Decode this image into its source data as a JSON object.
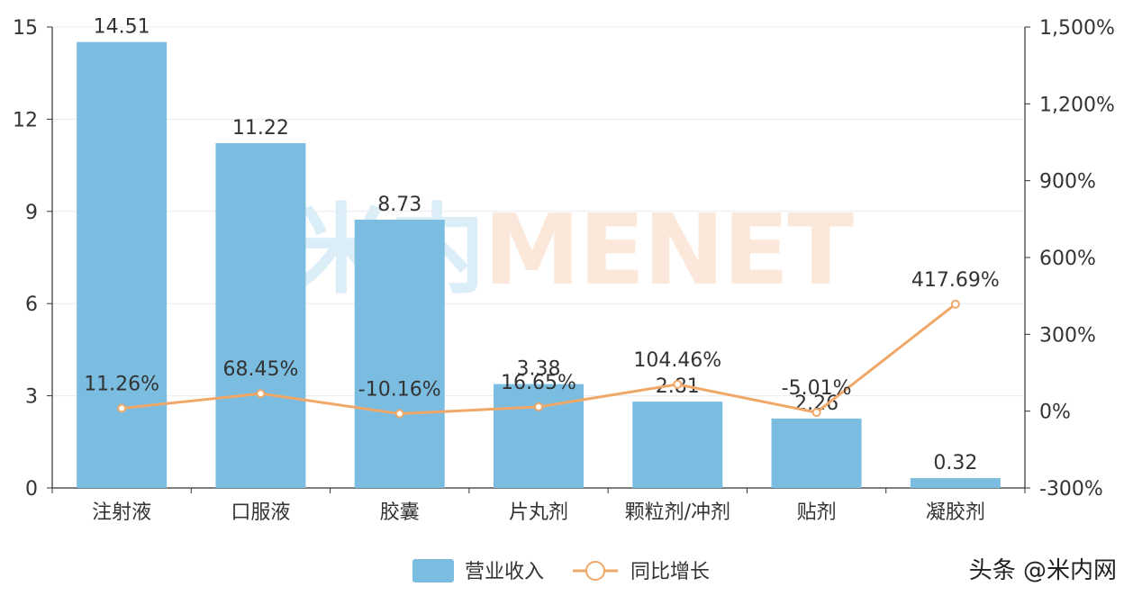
{
  "chart_data": {
    "type": "bar",
    "categories": [
      "注射液",
      "口服液",
      "胶囊",
      "片丸剂",
      "颗粒剂/冲剂",
      "贴剂",
      "凝胶剂"
    ],
    "series": [
      {
        "name": "营业收入",
        "type": "bar",
        "axis": "left",
        "values": [
          14.51,
          11.22,
          8.73,
          3.38,
          2.81,
          2.26,
          0.32
        ],
        "labels": [
          "14.51",
          "11.22",
          "8.73",
          "3.38",
          "2.81",
          "2.26",
          "0.32"
        ],
        "color": "#7bbde0"
      },
      {
        "name": "同比增长",
        "type": "line",
        "axis": "right",
        "values": [
          11.26,
          68.45,
          -10.16,
          16.65,
          104.46,
          -5.01,
          417.69
        ],
        "labels": [
          "11.26%",
          "68.45%",
          "-10.16%",
          "16.65%",
          "104.46%",
          "-5.01%",
          "417.69%"
        ],
        "color": "#f0a868"
      }
    ],
    "y_left": {
      "ylim": [
        0,
        15
      ],
      "ticks": [
        "0",
        "3",
        "6",
        "9",
        "12",
        "15"
      ]
    },
    "y_right": {
      "ylim": [
        -300,
        1500
      ],
      "ticks": [
        "-300%",
        "0%",
        "300%",
        "600%",
        "900%",
        "1,200%",
        "1,500%"
      ]
    },
    "grid": true,
    "legend_position": "bottom-center",
    "watermark": {
      "part1": "米内",
      "part2": "MENET"
    }
  },
  "credit": "头条 @米内网"
}
